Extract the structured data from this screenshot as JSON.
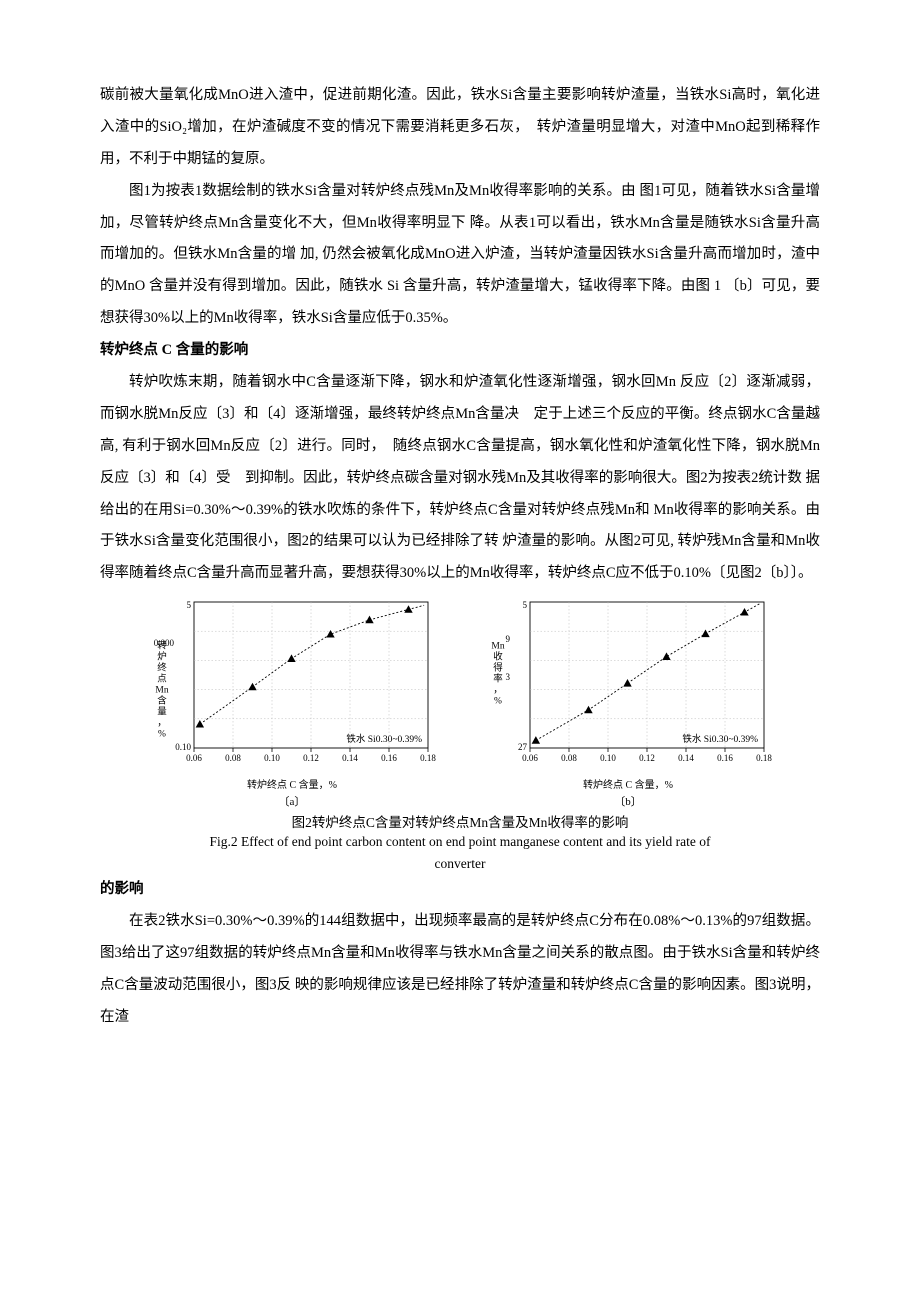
{
  "para1": "碳前被大量氧化成MnO进入渣中，促进前期化渣。因此，铁水Si含量主要影响转炉渣量，当铁水Si高时，氧化进入渣中的SiO₂增加，在炉渣碱度不变的情况下需要消耗更多石灰，　转炉渣量明显增大，对渣中MnO起到稀释作用，不利于中期锰的复原。",
  "para2": "图1为按表1数据绘制的铁水Si含量对转炉终点残Mn及Mn收得率影响的关系。由 图1可见，随着铁水Si含量增加，尽管转炉终点Mn含量变化不大，但Mn收得率明显下 降。从表1可以看出，铁水Mn含量是随铁水Si含量升高而增加的。但铁水Mn含量的增 加, 仍然会被氧化成MnO进入炉渣，当转炉渣量因铁水Si含量升高而增加时，渣中的MnO 含量并没有得到增加。因此，随铁水 Si 含量升高，转炉渣量增大，锰收得率下降。由图 1 〔b〕可见，要想获得30%以上的Mn收得率，铁水Si含量应低于0.35%。",
  "heading1": "转炉终点 C 含量的影响",
  "para3": "转炉吹炼末期，随着钢水中C含量逐渐下降，钢水和炉渣氧化性逐渐增强，钢水回Mn 反应〔2〕逐渐减弱，而钢水脱Mn反应〔3〕和〔4〕逐渐增强，最终转炉终点Mn含量决　定于上述三个反应的平衡。终点钢水C含量越高, 有利于钢水回Mn反应〔2〕进行。同时，　随终点钢水C含量提高，钢水氧化性和炉渣氧化性下降，钢水脱Mn反应〔3〕和〔4〕受　到抑制。因此，转炉终点碳含量对钢水残Mn及其收得率的影响很大。图2为按表2统计数 据给出的在用Si=0.30%〜0.39%的铁水吹炼的条件下，转炉终点C含量对转炉终点残Mn和 Mn收得率的影响关系。由于铁水Si含量变化范围很小，图2的结果可以认为已经排除了转 炉渣量的影响。从图2可见, 转炉残Mn含量和Mn收得率随着终点C含量升高而显著升高，要想获得30%以上的Mn收得率，转炉终点C应不低于0.10%〔见图2〔b〕〕。",
  "heading2": "的影响",
  "para4": "在表2铁水Si=0.30%〜0.39%的144组数据中，出现频率最高的是转炉终点C分布在0.08%〜0.13%的97组数据。图3给出了这97组数据的转炉终点Mn含量和Mn收得率与铁水Mn含量之间关系的散点图。由于铁水Si含量和转炉终点C含量波动范围很小，图3反 映的影响规律应该是已经排除了转炉渣量和转炉终点C含量的影响因素。图3说明，在渣",
  "fig2": {
    "caption_cn": "图2转炉终点C含量对转炉终点Mn含量及Mn收得率的影响",
    "caption_en1": "Fig.2 Effect of end point carbon content on end point manganese content and its yield rate of",
    "caption_en2": "converter",
    "x_axis_title": "转炉终点 C 含量，%",
    "sub_a": "〔a〕",
    "sub_b": "〔b〕",
    "annotation": "铁水 Si0.30~0.39%",
    "chart_a": {
      "type": "line-scatter",
      "bg_color": "#ffffff",
      "grid_color": "#b8b8b8",
      "marker_color": "#000000",
      "line_color": "#000000",
      "x_ticks": [
        0.06,
        0.08,
        0.1,
        0.12,
        0.14,
        0.16,
        0.18
      ],
      "x_tick_labels": [
        "0.06",
        "0.08",
        "0.10",
        "0.12",
        "0.14",
        "0.16",
        "0.18"
      ],
      "y_ticks": [
        0.1,
        5
      ],
      "y_tick_labels": [
        "0.10",
        "5"
      ],
      "y_axis_label_chars": [
        "转",
        "炉",
        "终",
        "点",
        "Mn",
        "含",
        "量",
        "，",
        "%"
      ],
      "y_axis_extra": "0.000",
      "points": [
        {
          "x": 0.063,
          "y": 0.9
        },
        {
          "x": 0.09,
          "y": 2.15
        },
        {
          "x": 0.11,
          "y": 3.1
        },
        {
          "x": 0.13,
          "y": 3.92
        },
        {
          "x": 0.15,
          "y": 4.4
        },
        {
          "x": 0.17,
          "y": 4.75
        }
      ],
      "ylim": [
        0.1,
        5
      ],
      "xlim": [
        0.06,
        0.18
      ]
    },
    "chart_b": {
      "type": "line-scatter",
      "bg_color": "#ffffff",
      "grid_color": "#b8b8b8",
      "marker_color": "#000000",
      "line_color": "#000000",
      "x_ticks": [
        0.06,
        0.08,
        0.1,
        0.12,
        0.14,
        0.16,
        0.18
      ],
      "x_tick_labels": [
        "0.06",
        "0.08",
        "0.10",
        "0.12",
        "0.14",
        "0.16",
        "0.18"
      ],
      "y_ticks": [
        27,
        3,
        9,
        5
      ],
      "y_tick_labels": [
        "27"
      ],
      "y_axis_label_chars": [
        "Mn",
        "收",
        "得",
        "率",
        "，",
        "%"
      ],
      "y_axis_extra_top": "5",
      "y_axis_extra_mid": "9",
      "y_axis_extra_mid2": "3",
      "points": [
        {
          "x": 0.063,
          "y": 27.6
        },
        {
          "x": 0.09,
          "y": 30.0
        },
        {
          "x": 0.11,
          "y": 32.1
        },
        {
          "x": 0.13,
          "y": 34.2
        },
        {
          "x": 0.15,
          "y": 36.0
        },
        {
          "x": 0.17,
          "y": 37.7
        }
      ],
      "ylim": [
        27,
        38.5
      ],
      "xlim": [
        0.06,
        0.18
      ]
    }
  }
}
